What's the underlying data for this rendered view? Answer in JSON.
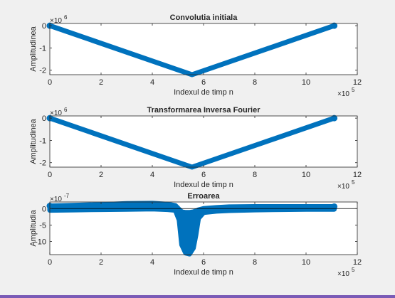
{
  "colors": {
    "series": "#0072BD",
    "axes": "#262626",
    "window_bottom": "#7a5bb6"
  },
  "chart_data": [
    {
      "type": "scatter",
      "title": "Convolutia initiala",
      "xlabel": "Indexul de timp n",
      "ylabel": "Amplitudinea",
      "x_exponent_label": "×10",
      "x_exponent": "5",
      "y_exponent_label": "×10",
      "y_exponent": "6",
      "xlim": [
        0,
        12
      ],
      "ylim": [
        -2.2,
        0.1
      ],
      "x_ticks": [
        0,
        2,
        4,
        6,
        8,
        10,
        12
      ],
      "y_ticks": [
        -2,
        -1,
        0
      ],
      "grid": false,
      "series": [
        {
          "shape": "filled triangle",
          "x": [
            0,
            5.55,
            11.1
          ],
          "y_top": [
            0,
            -2.2,
            0
          ],
          "y_bottom": [
            0,
            -2.2,
            0
          ]
        }
      ]
    },
    {
      "type": "scatter",
      "title": "Transformarea Inversa Fourier",
      "xlabel": "Indexul de timp n",
      "ylabel": "Amplitudinea",
      "x_exponent_label": "×10",
      "x_exponent": "5",
      "y_exponent_label": "×10",
      "y_exponent": "6",
      "xlim": [
        0,
        12
      ],
      "ylim": [
        -2.2,
        0.1
      ],
      "x_ticks": [
        0,
        2,
        4,
        6,
        8,
        10,
        12
      ],
      "y_ticks": [
        -2,
        -1,
        0
      ],
      "grid": false,
      "series": [
        {
          "shape": "filled triangle",
          "x": [
            0,
            5.55,
            11.1
          ],
          "y_top": [
            0,
            -2.2,
            0
          ],
          "y_bottom": [
            0,
            -2.2,
            0
          ]
        }
      ]
    },
    {
      "type": "scatter",
      "title": "Erroarea",
      "xlabel": "Indexul de timp n",
      "ylabel": "Amplitudia",
      "x_exponent_label": "×10",
      "x_exponent": "5",
      "y_exponent_label": "×10",
      "y_exponent": "-7",
      "xlim": [
        0,
        12
      ],
      "ylim": [
        -14,
        2
      ],
      "x_ticks": [
        0,
        2,
        4,
        6,
        8,
        10,
        12
      ],
      "y_ticks": [
        -10,
        -5,
        0
      ],
      "grid": false,
      "series": [
        {
          "shape": "error band",
          "x": [
            0,
            1,
            2,
            3,
            4,
            4.6,
            4.9,
            5.05,
            5.15,
            5.3,
            5.45,
            5.6,
            5.7,
            5.8,
            6.0,
            6.5,
            7.0,
            8.0,
            9.0,
            10.0,
            11.1
          ],
          "y_top": [
            0.8,
            1.0,
            1.2,
            1.5,
            1.6,
            1.3,
            0.9,
            -0.3,
            -1.0,
            -1.2,
            -1.2,
            -1.0,
            -0.8,
            -0.4,
            0.0,
            0.3,
            0.5,
            0.6,
            0.6,
            0.6,
            0.6
          ],
          "y_bottom": [
            -0.5,
            -0.4,
            -0.3,
            -0.2,
            -0.1,
            -0.3,
            -0.5,
            -3.5,
            -11.0,
            -13.5,
            -13.8,
            -12.0,
            -8.0,
            -3.0,
            -1.2,
            -0.8,
            -0.6,
            -0.4,
            -0.3,
            -0.2,
            -0.2
          ]
        }
      ]
    }
  ]
}
